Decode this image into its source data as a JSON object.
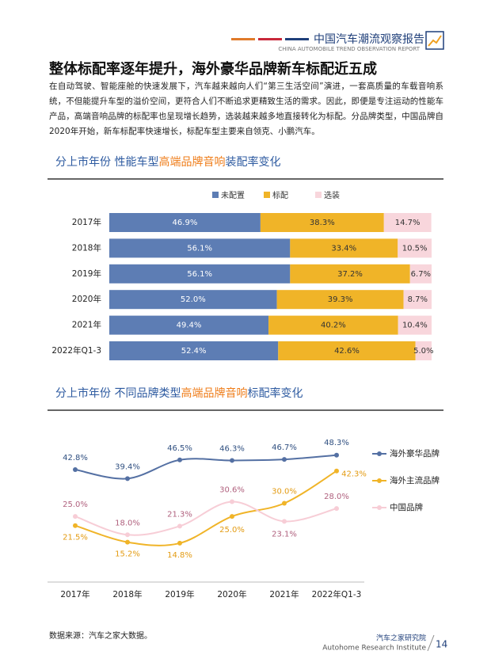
{
  "header": {
    "title": "中国汽车潮流观察报告",
    "subtitle": "CHINA AUTOMOBILE TREND OBSERVATION REPORT"
  },
  "heading": "整体标配率逐年提升，海外豪华品牌新车标配近五成",
  "paragraph": "在自动驾驶、智能座舱的快速发展下，汽车越来越向人们“第三生活空间”演进，一套高质量的车载音响系统，不但能提升车型的溢价空间，更符合人们不断追求更精致生活的需求。因此，即便是专注运动的性能车产品，高端音响品牌的标配率也呈现增长趋势，选装越来越多地直接转化为标配。分品牌类型，中国品牌自2020年开始，新车标配率快速增长，标配车型主要来自领克、小鹏汽车。",
  "chart_data": [
    {
      "type": "stacked_barh",
      "title": [
        "分上市年份  性能车型",
        "高端品牌音响",
        "装配率变化"
      ],
      "categories": [
        "2017年",
        "2018年",
        "2019年",
        "2020年",
        "2021年",
        "2022年Q1-3"
      ],
      "xlim": [
        0,
        100
      ],
      "series": [
        {
          "name": "未配置",
          "color": "#5d7db4",
          "values": [
            46.9,
            56.1,
            56.1,
            52.0,
            49.4,
            52.4
          ],
          "value_labels": [
            "46.9%",
            "56.1%",
            "56.1%",
            "52.0%",
            "49.4%",
            "52.4%"
          ]
        },
        {
          "name": "标配",
          "color": "#f0b428",
          "values": [
            38.3,
            33.4,
            37.2,
            39.3,
            40.2,
            42.6
          ],
          "value_labels": [
            "38.3%",
            "33.4%",
            "37.2%",
            "39.3%",
            "40.2%",
            "42.6%"
          ]
        },
        {
          "name": "选装",
          "color": "#f8d6dc",
          "values": [
            14.7,
            10.5,
            6.7,
            8.7,
            10.4,
            5.0
          ],
          "value_labels": [
            "14.7%",
            "10.5%",
            "6.7%",
            "8.7%",
            "10.4%",
            "5.0%"
          ]
        }
      ]
    },
    {
      "type": "line",
      "title": [
        "分上市年份  不同品牌类型",
        "高端品牌音响",
        "标配率变化"
      ],
      "categories": [
        "2017年",
        "2018年",
        "2019年",
        "2020年",
        "2021年",
        "2022年Q1-3"
      ],
      "ylim": [
        0,
        60
      ],
      "series": [
        {
          "name": "海外豪华品牌",
          "color": "#5470a3",
          "label_color": "#2f4f80",
          "values": [
            42.8,
            39.4,
            46.5,
            46.3,
            46.7,
            48.3
          ],
          "value_labels": [
            "42.8%",
            "39.4%",
            "46.5%",
            "46.3%",
            "46.7%",
            "48.3%"
          ]
        },
        {
          "name": "海外主流品牌",
          "color": "#f0b428",
          "label_color": "#e39b12",
          "values": [
            21.5,
            15.2,
            14.8,
            25.0,
            30.0,
            42.3
          ],
          "value_labels": [
            "21.5%",
            "15.2%",
            "14.8%",
            "25.0%",
            "30.0%",
            "42.3%"
          ]
        },
        {
          "name": "中国品牌",
          "color": "#f7cdd6",
          "label_color": "#b0617e",
          "values": [
            25.0,
            18.0,
            21.3,
            30.6,
            23.1,
            28.0
          ],
          "value_labels": [
            "25.0%",
            "18.0%",
            "21.3%",
            "30.6%",
            "23.1%",
            "28.0%"
          ]
        }
      ]
    }
  ],
  "footer": {
    "source": "数据来源：汽车之家大数据。",
    "org_cn": "汽车之家研究院",
    "org_en": "Autohome Research Institute",
    "page": "14"
  }
}
